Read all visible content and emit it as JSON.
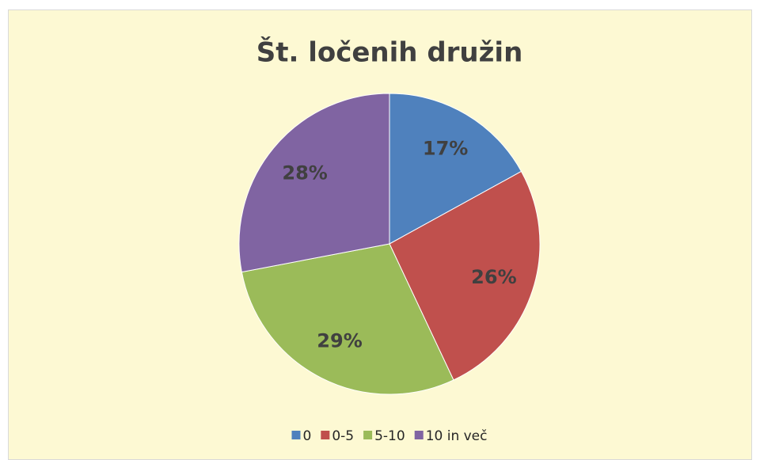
{
  "chart_data": {
    "type": "pie",
    "title": "Št. ločenih družin",
    "categories": [
      "0",
      "0-5",
      "5-10",
      "10 in več"
    ],
    "values": [
      17,
      26,
      29,
      28
    ],
    "value_labels": [
      "17%",
      "26%",
      "29%",
      "28%"
    ],
    "colors": [
      "#4f81bd",
      "#c0504d",
      "#9bbb59",
      "#8064a2"
    ],
    "legend": "bottom"
  }
}
